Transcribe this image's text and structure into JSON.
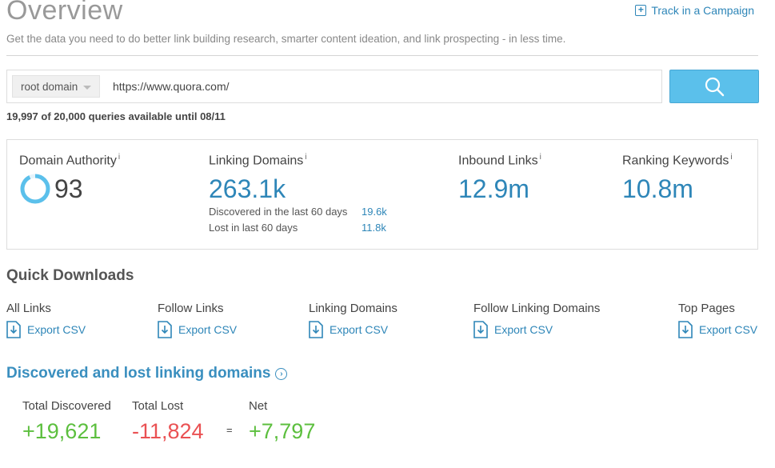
{
  "header": {
    "title": "Overview",
    "track_label": "Track in a Campaign",
    "subtitle": "Get the data you need to do better link building research, smarter content ideation, and link prospecting - in less time."
  },
  "search": {
    "scope_selected": "root domain",
    "url_value": "https://www.quora.com/",
    "quota_text": "19,997 of 20,000 queries available until 08/11"
  },
  "metrics": {
    "domain_authority": {
      "label": "Domain Authority",
      "info": "i",
      "value": "93"
    },
    "linking_domains": {
      "label": "Linking Domains",
      "info": "i",
      "value": "263.1k",
      "discovered_label": "Discovered in the last 60 days",
      "discovered_value": "19.6k",
      "lost_label": "Lost in last 60 days",
      "lost_value": "11.8k"
    },
    "inbound_links": {
      "label": "Inbound Links",
      "info": "i",
      "value": "12.9m"
    },
    "ranking_keywords": {
      "label": "Ranking Keywords",
      "info": "i",
      "value": "10.8m"
    }
  },
  "quick_downloads": {
    "title": "Quick Downloads",
    "items": [
      {
        "label": "All Links",
        "export": "Export CSV"
      },
      {
        "label": "Follow Links",
        "export": "Export CSV"
      },
      {
        "label": "Linking Domains",
        "export": "Export CSV"
      },
      {
        "label": "Follow Linking Domains",
        "export": "Export CSV"
      },
      {
        "label": "Top Pages",
        "export": "Export CSV"
      }
    ]
  },
  "discovered_lost": {
    "title": "Discovered and lost linking domains",
    "total_discovered_label": "Total Discovered",
    "total_discovered_value": "+19,621",
    "total_lost_label": "Total Lost",
    "total_lost_value": "-11,824",
    "equals": "=",
    "net_label": "Net",
    "net_value": "+7,797"
  },
  "colors": {
    "accent": "#2e86b8",
    "search_button": "#5bc0eb",
    "positive": "#5cbf3e",
    "negative": "#ea5153"
  }
}
